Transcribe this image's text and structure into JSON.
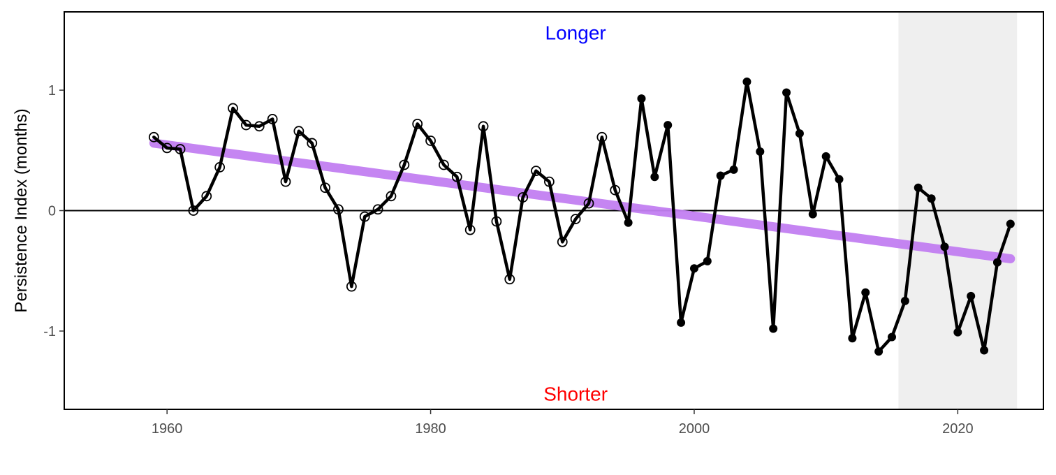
{
  "chart_data": {
    "type": "line",
    "title": "",
    "xlabel": "",
    "ylabel": "Persistence Index (months)",
    "xlim": [
      1952.2,
      2026.5
    ],
    "ylim": [
      -1.65,
      1.65
    ],
    "x_ticks": [
      1960,
      1980,
      2000,
      2020
    ],
    "y_ticks": [
      -1,
      0,
      1
    ],
    "grid": false,
    "legend": "none",
    "reference_line_y": 0,
    "shaded_region": {
      "x_start": 2015.5,
      "x_end": 2024.5,
      "color": "#efefef"
    },
    "annotations": [
      {
        "text": "Longer",
        "x": 1991,
        "y": 1.48,
        "color": "#0000ff"
      },
      {
        "text": "Shorter",
        "x": 1991,
        "y": -1.52,
        "color": "#ff0000"
      }
    ],
    "trend": {
      "x": [
        1959,
        2024
      ],
      "y": [
        0.56,
        -0.4
      ],
      "color": "#c27ff2"
    },
    "series": [
      {
        "color": "#000000",
        "x": [
          1959,
          1960,
          1961,
          1962,
          1963,
          1964,
          1965,
          1966,
          1967,
          1968,
          1969,
          1970,
          1971,
          1972,
          1973,
          1974,
          1975,
          1976,
          1977,
          1978,
          1979,
          1980,
          1981,
          1982,
          1983,
          1984,
          1985,
          1986,
          1987,
          1988,
          1989,
          1990,
          1991,
          1992,
          1993,
          1994,
          1995,
          1996,
          1997,
          1998,
          1999,
          2000,
          2001,
          2002,
          2003,
          2004,
          2005,
          2006,
          2007,
          2008,
          2009,
          2010,
          2011,
          2012,
          2013,
          2014,
          2015,
          2016,
          2017,
          2018,
          2019,
          2020,
          2021,
          2022,
          2023,
          2024
        ],
        "values": [
          0.61,
          0.52,
          0.51,
          0.0,
          0.12,
          0.36,
          0.85,
          0.71,
          0.7,
          0.76,
          0.24,
          0.66,
          0.56,
          0.19,
          0.01,
          -0.63,
          -0.05,
          0.01,
          0.12,
          0.38,
          0.72,
          0.58,
          0.38,
          0.28,
          -0.16,
          0.7,
          -0.09,
          -0.57,
          0.11,
          0.33,
          0.24,
          -0.26,
          -0.07,
          0.06,
          0.61,
          0.17,
          -0.1,
          0.93,
          0.28,
          0.71,
          -0.93,
          -0.48,
          -0.42,
          0.29,
          0.34,
          1.07,
          0.49,
          -0.98,
          0.98,
          0.64,
          -0.03,
          0.45,
          0.26,
          -1.06,
          -0.68,
          -1.17,
          -1.05,
          -0.75,
          0.19,
          0.1,
          -0.3,
          -1.01,
          -0.71,
          -1.16,
          -0.43,
          -0.11
        ],
        "open_marker_until": 1994
      }
    ]
  }
}
